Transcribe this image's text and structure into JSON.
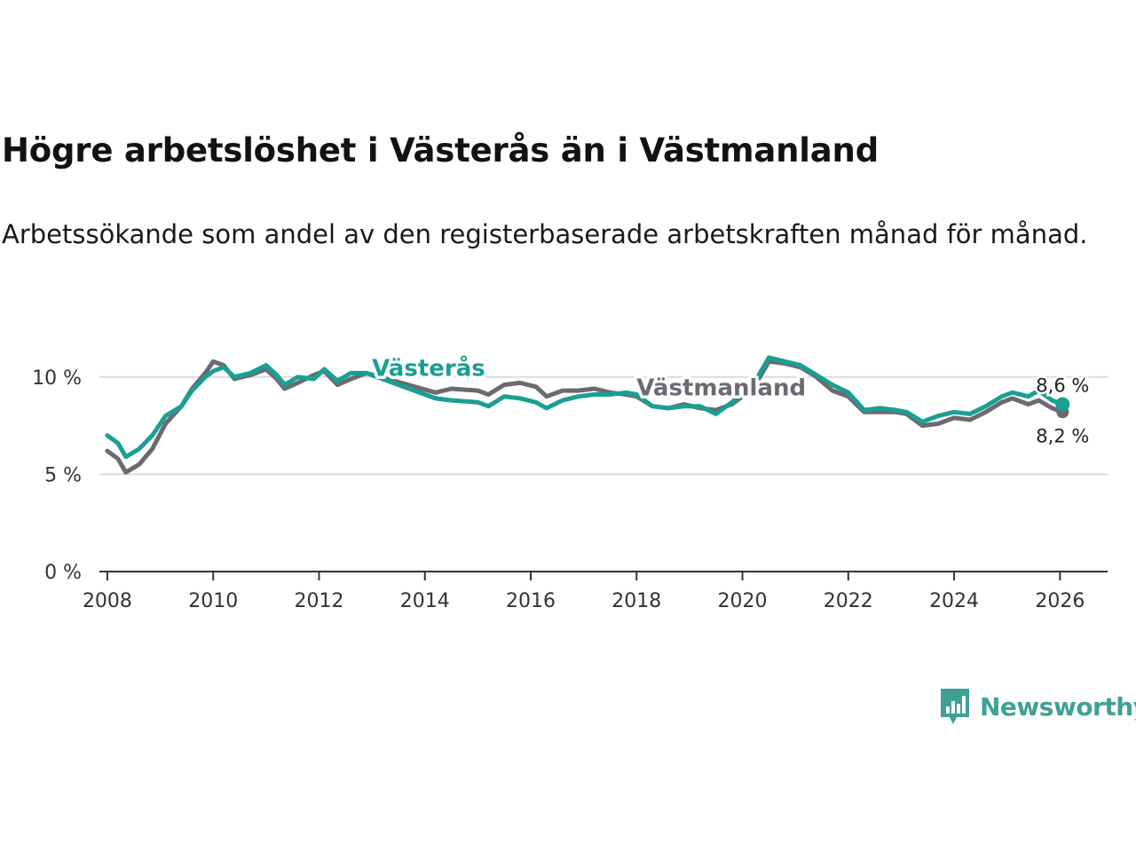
{
  "title": "Högre arbetslöshet i Västerås än i Västmanland",
  "subtitle": "Arbetssökande som andel av den registerbaserade arbetskraften månad för månad.",
  "brand": {
    "name": "Newsworthy",
    "color": "#3fa096"
  },
  "chart_data": {
    "type": "line",
    "y_tick_labels": [
      "0 %",
      "5 %",
      "10 %"
    ],
    "y_ticks": [
      0,
      5,
      10
    ],
    "ylim": [
      0,
      12.5
    ],
    "xlim": [
      2007.85,
      2026.9
    ],
    "x_ticks": [
      2008,
      2010,
      2012,
      2014,
      2016,
      2018,
      2020,
      2022,
      2024,
      2026
    ],
    "x_tick_labels": [
      "2008",
      "2010",
      "2012",
      "2014",
      "2016",
      "2018",
      "2020",
      "2022",
      "2024",
      "2026"
    ],
    "series": [
      {
        "name": "Västmanland",
        "color": "#6b6a70",
        "end_label": "8,2 %",
        "points": [
          [
            2008.0,
            6.2
          ],
          [
            2008.2,
            5.8
          ],
          [
            2008.35,
            5.1
          ],
          [
            2008.6,
            5.5
          ],
          [
            2008.85,
            6.3
          ],
          [
            2009.1,
            7.6
          ],
          [
            2009.4,
            8.5
          ],
          [
            2009.6,
            9.4
          ],
          [
            2009.85,
            10.2
          ],
          [
            2010.0,
            10.8
          ],
          [
            2010.2,
            10.6
          ],
          [
            2010.4,
            9.9
          ],
          [
            2010.7,
            10.1
          ],
          [
            2011.0,
            10.4
          ],
          [
            2011.2,
            9.9
          ],
          [
            2011.35,
            9.4
          ],
          [
            2011.6,
            9.7
          ],
          [
            2011.9,
            10.1
          ],
          [
            2012.1,
            10.3
          ],
          [
            2012.35,
            9.6
          ],
          [
            2012.6,
            9.9
          ],
          [
            2012.9,
            10.2
          ],
          [
            2014.2,
            9.2
          ],
          [
            2014.5,
            9.4
          ],
          [
            2015.0,
            9.3
          ],
          [
            2015.2,
            9.1
          ],
          [
            2015.5,
            9.6
          ],
          [
            2015.8,
            9.7
          ],
          [
            2016.1,
            9.5
          ],
          [
            2016.3,
            9.0
          ],
          [
            2016.6,
            9.3
          ],
          [
            2016.9,
            9.3
          ],
          [
            2017.2,
            9.4
          ],
          [
            2017.5,
            9.2
          ],
          [
            2017.8,
            9.1
          ],
          [
            2018.0,
            9.0
          ],
          [
            2018.3,
            8.5
          ],
          [
            2018.6,
            8.4
          ],
          [
            2018.9,
            8.6
          ],
          [
            2019.2,
            8.4
          ],
          [
            2019.5,
            8.3
          ],
          [
            2019.8,
            8.6
          ],
          [
            2020.2,
            9.4
          ],
          [
            2020.5,
            10.8
          ],
          [
            2020.8,
            10.7
          ],
          [
            2021.1,
            10.5
          ],
          [
            2021.4,
            10.0
          ],
          [
            2021.7,
            9.3
          ],
          [
            2022.0,
            9.0
          ],
          [
            2022.3,
            8.2
          ],
          [
            2022.6,
            8.2
          ],
          [
            2022.9,
            8.2
          ],
          [
            2023.1,
            8.1
          ],
          [
            2023.4,
            7.5
          ],
          [
            2023.7,
            7.6
          ],
          [
            2024.0,
            7.9
          ],
          [
            2024.3,
            7.8
          ],
          [
            2024.6,
            8.2
          ],
          [
            2024.9,
            8.7
          ],
          [
            2025.1,
            8.9
          ],
          [
            2025.4,
            8.6
          ],
          [
            2025.6,
            8.8
          ],
          [
            2025.85,
            8.4
          ],
          [
            2026.05,
            8.2
          ]
        ]
      },
      {
        "name": "Västerås",
        "color": "#1a9f93",
        "end_label": "8,6 %",
        "points": [
          [
            2008.0,
            7.0
          ],
          [
            2008.2,
            6.6
          ],
          [
            2008.35,
            5.9
          ],
          [
            2008.6,
            6.3
          ],
          [
            2008.85,
            7.0
          ],
          [
            2009.1,
            8.0
          ],
          [
            2009.4,
            8.5
          ],
          [
            2009.6,
            9.3
          ],
          [
            2009.85,
            10.0
          ],
          [
            2010.0,
            10.3
          ],
          [
            2010.2,
            10.5
          ],
          [
            2010.4,
            10.0
          ],
          [
            2010.7,
            10.2
          ],
          [
            2011.0,
            10.6
          ],
          [
            2011.2,
            10.1
          ],
          [
            2011.35,
            9.6
          ],
          [
            2011.6,
            10.0
          ],
          [
            2011.9,
            9.9
          ],
          [
            2012.1,
            10.4
          ],
          [
            2012.35,
            9.8
          ],
          [
            2012.6,
            10.2
          ],
          [
            2012.9,
            10.2
          ],
          [
            2014.2,
            8.9
          ],
          [
            2014.5,
            8.8
          ],
          [
            2015.0,
            8.7
          ],
          [
            2015.2,
            8.5
          ],
          [
            2015.5,
            9.0
          ],
          [
            2015.8,
            8.9
          ],
          [
            2016.1,
            8.7
          ],
          [
            2016.3,
            8.4
          ],
          [
            2016.6,
            8.8
          ],
          [
            2016.9,
            9.0
          ],
          [
            2017.2,
            9.1
          ],
          [
            2017.5,
            9.1
          ],
          [
            2017.8,
            9.2
          ],
          [
            2018.0,
            9.1
          ],
          [
            2018.3,
            8.5
          ],
          [
            2018.6,
            8.4
          ],
          [
            2018.9,
            8.5
          ],
          [
            2019.2,
            8.5
          ],
          [
            2019.5,
            8.1
          ],
          [
            2019.8,
            8.7
          ],
          [
            2020.2,
            9.6
          ],
          [
            2020.5,
            11.0
          ],
          [
            2020.8,
            10.8
          ],
          [
            2021.1,
            10.6
          ],
          [
            2021.4,
            10.1
          ],
          [
            2021.7,
            9.6
          ],
          [
            2022.0,
            9.2
          ],
          [
            2022.3,
            8.3
          ],
          [
            2022.6,
            8.4
          ],
          [
            2022.9,
            8.3
          ],
          [
            2023.1,
            8.2
          ],
          [
            2023.4,
            7.7
          ],
          [
            2023.7,
            8.0
          ],
          [
            2024.0,
            8.2
          ],
          [
            2024.3,
            8.1
          ],
          [
            2024.6,
            8.5
          ],
          [
            2024.9,
            9.0
          ],
          [
            2025.1,
            9.2
          ],
          [
            2025.4,
            9.0
          ],
          [
            2025.6,
            9.3
          ],
          [
            2025.85,
            8.8
          ],
          [
            2026.05,
            8.6
          ]
        ]
      }
    ]
  }
}
